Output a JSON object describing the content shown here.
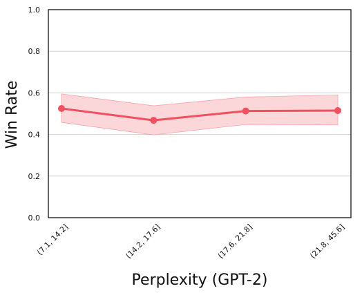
{
  "chart_data": {
    "type": "line",
    "xlabel": "Perplexity (GPT-2)",
    "ylabel": "Win Rate",
    "ylim": [
      0.0,
      1.0
    ],
    "yticks": [
      "0.0",
      "0.2",
      "0.4",
      "0.6",
      "0.8",
      "1.0"
    ],
    "ytick_values": [
      0.0,
      0.2,
      0.4,
      0.6,
      0.8,
      1.0
    ],
    "categories": [
      "(7.1, 14.2]",
      "(14.2, 17.6]",
      "(17.6, 21.8]",
      "(21.8, 45.6]"
    ],
    "series": [
      {
        "values": [
          0.525,
          0.468,
          0.513,
          0.515
        ],
        "lower": [
          0.458,
          0.398,
          0.448,
          0.446
        ],
        "upper": [
          0.595,
          0.538,
          0.58,
          0.59
        ],
        "color": "#f05060",
        "band_color": "#fbd0d4"
      }
    ],
    "grid": "horizontal"
  }
}
